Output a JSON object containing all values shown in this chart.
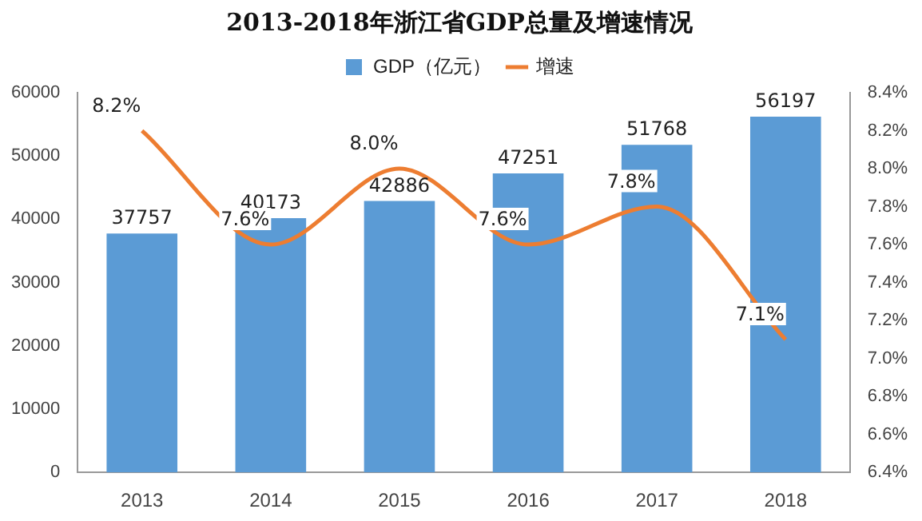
{
  "chart_data": {
    "type": "bar",
    "title": "2013-2018年浙江省GDP总量及增速情况",
    "categories": [
      "2013",
      "2014",
      "2015",
      "2016",
      "2017",
      "2018"
    ],
    "series": [
      {
        "name": "GDP（亿元）",
        "color": "#5b9bd5",
        "values": [
          37757,
          40173,
          42886,
          47251,
          51768,
          56197
        ],
        "data_labels": true
      },
      {
        "name": "增速",
        "type": "line",
        "axis": "y2",
        "color": "#ed7d31",
        "values": [
          8.2,
          7.6,
          8.0,
          7.6,
          7.8,
          7.1
        ],
        "value_labels": [
          "8.2%",
          "7.6%",
          "8.0%",
          "7.6%",
          "7.8%",
          "7.1%"
        ],
        "marker": "none"
      }
    ],
    "ylim": [
      0,
      60000
    ],
    "yticks": [
      0,
      10000,
      20000,
      30000,
      40000,
      50000,
      60000
    ],
    "y2lim": [
      6.4,
      8.4
    ],
    "y2ticks": [
      {
        "value": 6.4,
        "label": "6.4%"
      },
      {
        "value": 6.6,
        "label": "6.6%"
      },
      {
        "value": 6.8,
        "label": "6.8%"
      },
      {
        "value": 7.0,
        "label": "7.0%"
      },
      {
        "value": 7.2,
        "label": "7.2%"
      },
      {
        "value": 7.4,
        "label": "7.4%"
      },
      {
        "value": 7.6,
        "label": "7.6%"
      },
      {
        "value": 7.8,
        "label": "7.8%"
      },
      {
        "value": 8.0,
        "label": "8.0%"
      },
      {
        "value": 8.2,
        "label": "8.2%"
      },
      {
        "value": 8.4,
        "label": "8.4%"
      }
    ],
    "grid": false,
    "legend": "top"
  }
}
